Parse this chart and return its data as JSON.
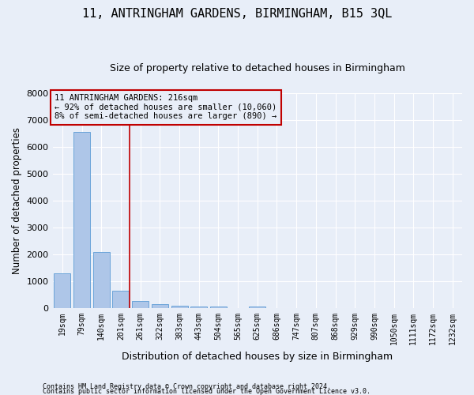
{
  "title": "11, ANTRINGHAM GARDENS, BIRMINGHAM, B15 3QL",
  "subtitle": "Size of property relative to detached houses in Birmingham",
  "xlabel": "Distribution of detached houses by size in Birmingham",
  "ylabel": "Number of detached properties",
  "bar_labels": [
    "19sqm",
    "79sqm",
    "140sqm",
    "201sqm",
    "261sqm",
    "322sqm",
    "383sqm",
    "443sqm",
    "504sqm",
    "565sqm",
    "625sqm",
    "686sqm",
    "747sqm",
    "807sqm",
    "868sqm",
    "929sqm",
    "990sqm",
    "1050sqm",
    "1111sqm",
    "1172sqm",
    "1232sqm"
  ],
  "bar_values": [
    1300,
    6550,
    2080,
    650,
    280,
    155,
    95,
    55,
    55,
    0,
    55,
    0,
    0,
    0,
    0,
    0,
    0,
    0,
    0,
    0,
    0
  ],
  "bar_color": "#aec6e8",
  "bar_edgecolor": "#5b9bd5",
  "vline_x": 3.45,
  "vline_color": "#c00000",
  "ylim": [
    0,
    8000
  ],
  "yticks": [
    0,
    1000,
    2000,
    3000,
    4000,
    5000,
    6000,
    7000,
    8000
  ],
  "annotation_text": "11 ANTRINGHAM GARDENS: 216sqm\n← 92% of detached houses are smaller (10,060)\n8% of semi-detached houses are larger (890) →",
  "annotation_box_color": "#c00000",
  "footnote1": "Contains HM Land Registry data © Crown copyright and database right 2024.",
  "footnote2": "Contains public sector information licensed under the Open Government Licence v3.0.",
  "background_color": "#e8eef8",
  "grid_color": "#ffffff",
  "title_fontsize": 11,
  "subtitle_fontsize": 9,
  "annot_fontsize": 7.5
}
